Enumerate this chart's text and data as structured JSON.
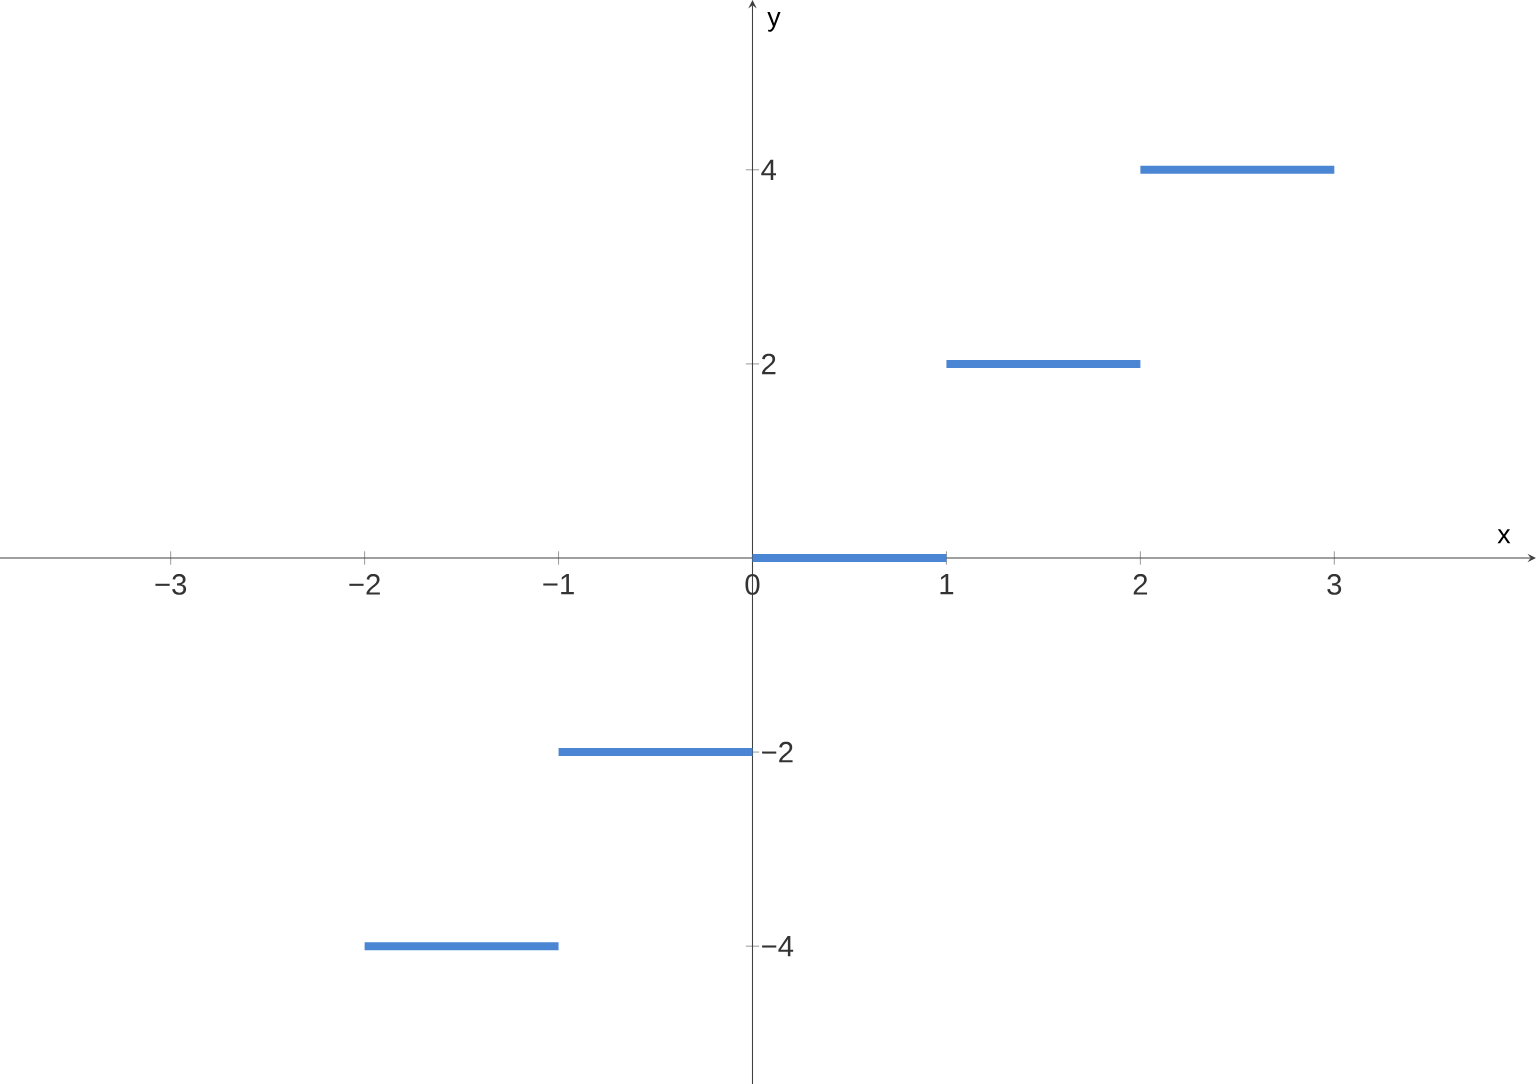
{
  "chart_data": {
    "type": "line",
    "xlabel": "x",
    "ylabel": "y",
    "xlim": [
      -3.88,
      4.04
    ],
    "ylim": [
      -5.42,
      5.75
    ],
    "xticks": [
      {
        "value": -3,
        "label": "−3"
      },
      {
        "value": -2,
        "label": "−2"
      },
      {
        "value": -1,
        "label": "−1"
      },
      0,
      1,
      2,
      3
    ],
    "yticks": [
      {
        "value": -4,
        "label": "−4"
      },
      {
        "value": -2,
        "label": "−2"
      },
      2,
      4
    ],
    "grid": false,
    "marker": "none",
    "line_style": "solid",
    "series": [
      {
        "color": "#4a86d4",
        "x": [
          -2,
          -1
        ],
        "values": [
          -4,
          -4
        ]
      },
      {
        "color": "#4a86d4",
        "x": [
          -1,
          0
        ],
        "values": [
          -2,
          -2
        ]
      },
      {
        "color": "#4a86d4",
        "x": [
          0,
          1
        ],
        "values": [
          0,
          0
        ]
      },
      {
        "color": "#4a86d4",
        "x": [
          1,
          2
        ],
        "values": [
          2,
          2
        ]
      },
      {
        "color": "#4a86d4",
        "x": [
          2,
          3
        ],
        "values": [
          4,
          4
        ]
      }
    ]
  }
}
